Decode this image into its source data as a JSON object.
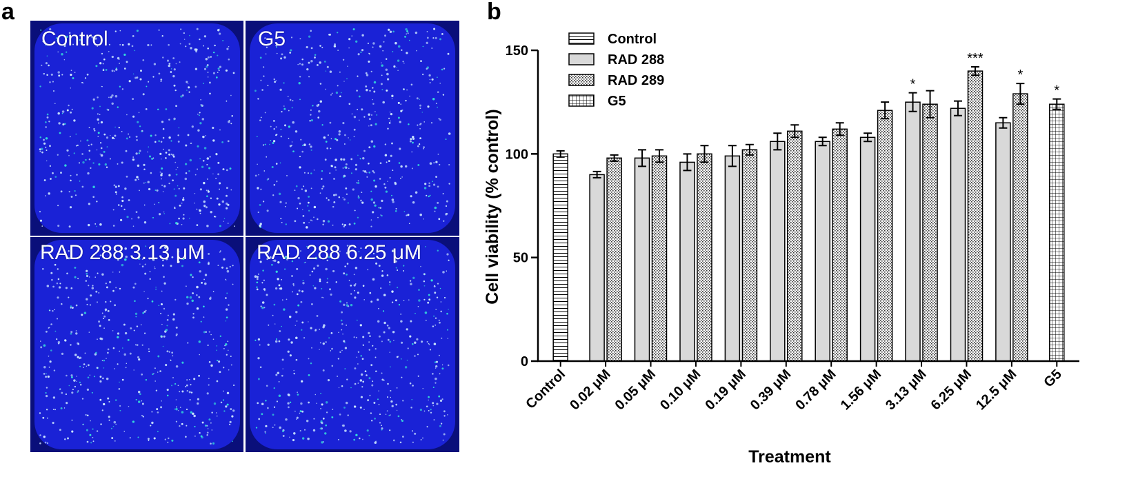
{
  "panels": {
    "a": {
      "letter": "a",
      "images": [
        {
          "label": "Control"
        },
        {
          "label": "G5"
        },
        {
          "label": "RAD 288 3.13 μM"
        },
        {
          "label": "RAD 288 6.25 μM"
        }
      ]
    },
    "b": {
      "letter": "b"
    }
  },
  "colors": {
    "micro_bg": "#1a22d6",
    "micro_dot": "#cfe9ff",
    "micro_dot_accent": "#36e0d8",
    "bar_fill": "#d9d9d9"
  },
  "chart_data": {
    "type": "bar",
    "xlabel": "Treatment",
    "ylabel": "Cell viability (% control)",
    "ylim": [
      0,
      150
    ],
    "yticks": [
      0,
      50,
      100,
      150
    ],
    "categories": [
      "Control",
      "0.02 μM",
      "0.05 μM",
      "0.10 μM",
      "0.19 μM",
      "0.39 μM",
      "0.78 μM",
      "1.56 μM",
      "3.13 μM",
      "6.25 μM",
      "12.5 μM",
      "G5"
    ],
    "legend": {
      "placement": "top-left",
      "entries": [
        {
          "name": "Control",
          "pattern": "hlines"
        },
        {
          "name": "RAD 288",
          "pattern": "solid"
        },
        {
          "name": "RAD 289",
          "pattern": "dots"
        },
        {
          "name": "G5",
          "pattern": "grid"
        }
      ]
    },
    "bars": [
      {
        "category": 0,
        "series": "Control",
        "value": 100,
        "error": 1.5,
        "sig": ""
      },
      {
        "category": 1,
        "series": "RAD 288",
        "value": 90,
        "error": 1.5,
        "sig": ""
      },
      {
        "category": 1,
        "series": "RAD 289",
        "value": 98,
        "error": 1.5,
        "sig": ""
      },
      {
        "category": 2,
        "series": "RAD 288",
        "value": 98,
        "error": 4,
        "sig": ""
      },
      {
        "category": 2,
        "series": "RAD 289",
        "value": 99,
        "error": 3,
        "sig": ""
      },
      {
        "category": 3,
        "series": "RAD 288",
        "value": 96,
        "error": 4,
        "sig": ""
      },
      {
        "category": 3,
        "series": "RAD 289",
        "value": 100,
        "error": 4,
        "sig": ""
      },
      {
        "category": 4,
        "series": "RAD 288",
        "value": 99,
        "error": 5,
        "sig": ""
      },
      {
        "category": 4,
        "series": "RAD 289",
        "value": 102,
        "error": 2.5,
        "sig": ""
      },
      {
        "category": 5,
        "series": "RAD 288",
        "value": 106,
        "error": 4,
        "sig": ""
      },
      {
        "category": 5,
        "series": "RAD 289",
        "value": 111,
        "error": 3,
        "sig": ""
      },
      {
        "category": 6,
        "series": "RAD 288",
        "value": 106,
        "error": 2,
        "sig": ""
      },
      {
        "category": 6,
        "series": "RAD 289",
        "value": 112,
        "error": 3,
        "sig": ""
      },
      {
        "category": 7,
        "series": "RAD 288",
        "value": 108,
        "error": 2,
        "sig": ""
      },
      {
        "category": 7,
        "series": "RAD 289",
        "value": 121,
        "error": 4,
        "sig": ""
      },
      {
        "category": 8,
        "series": "RAD 288",
        "value": 125,
        "error": 4.5,
        "sig": "*"
      },
      {
        "category": 8,
        "series": "RAD 289",
        "value": 124,
        "error": 6.5,
        "sig": ""
      },
      {
        "category": 9,
        "series": "RAD 288",
        "value": 122,
        "error": 3.5,
        "sig": ""
      },
      {
        "category": 9,
        "series": "RAD 289",
        "value": 140,
        "error": 2,
        "sig": "***"
      },
      {
        "category": 10,
        "series": "RAD 288",
        "value": 115,
        "error": 2.5,
        "sig": ""
      },
      {
        "category": 10,
        "series": "RAD 289",
        "value": 129,
        "error": 5,
        "sig": "*"
      },
      {
        "category": 11,
        "series": "G5",
        "value": 124,
        "error": 2.5,
        "sig": "*"
      }
    ]
  }
}
